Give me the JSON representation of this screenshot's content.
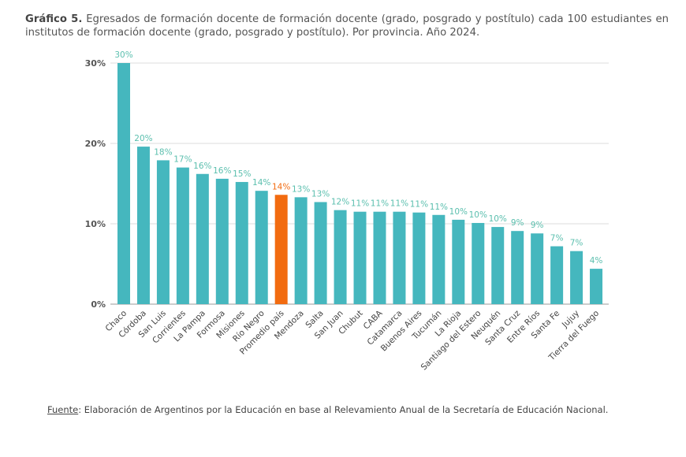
{
  "title_prefix": "Gráfico 5.",
  "title": "Egresados de formación docente de formación docente (grado, posgrado y postítulo) cada 100 estudiantes en institutos de formación docente (grado, posgrado y postítulo). Por provincia. Año 2024.",
  "source_label": "Fuente",
  "source_text": ": Elaboración de Argentinos por la Educación en base al Relevamiento Anual de la Secretaría de Educación Nacional.",
  "colors": {
    "bar": "#45b7be",
    "highlight": "#f26b10",
    "label": "#5bbfae"
  },
  "chart_data": {
    "type": "bar",
    "categories": [
      "Chaco",
      "Córdoba",
      "San Luis",
      "Corrientes",
      "La Pampa",
      "Formosa",
      "Misiones",
      "Río Negro",
      "Promedio país",
      "Mendoza",
      "Salta",
      "San Juan",
      "Chubut",
      "CABA",
      "Catamarca",
      "Buenos Aires",
      "Tucumán",
      "La Rioja",
      "Santiago del Estero",
      "Neuquén",
      "Santa Cruz",
      "Entre Ríos",
      "Santa Fe",
      "Jujuy",
      "Tierra del Fuego"
    ],
    "values": [
      30.0,
      19.6,
      17.9,
      17.0,
      16.2,
      15.6,
      15.2,
      14.1,
      13.6,
      13.3,
      12.7,
      11.7,
      11.5,
      11.5,
      11.5,
      11.4,
      11.1,
      10.5,
      10.1,
      9.6,
      9.1,
      8.8,
      7.2,
      6.6,
      4.4
    ],
    "data_labels": [
      "30%",
      "20%",
      "18%",
      "17%",
      "16%",
      "16%",
      "15%",
      "14%",
      "14%",
      "13%",
      "13%",
      "12%",
      "11%",
      "11%",
      "11%",
      "11%",
      "11%",
      "10%",
      "10%",
      "10%",
      "9%",
      "9%",
      "7%",
      "7%",
      "4%"
    ],
    "highlight": "Promedio país",
    "yticks": [
      "0%",
      "10%",
      "20%",
      "30%"
    ],
    "ylim": [
      0,
      30
    ],
    "grid": true
  }
}
